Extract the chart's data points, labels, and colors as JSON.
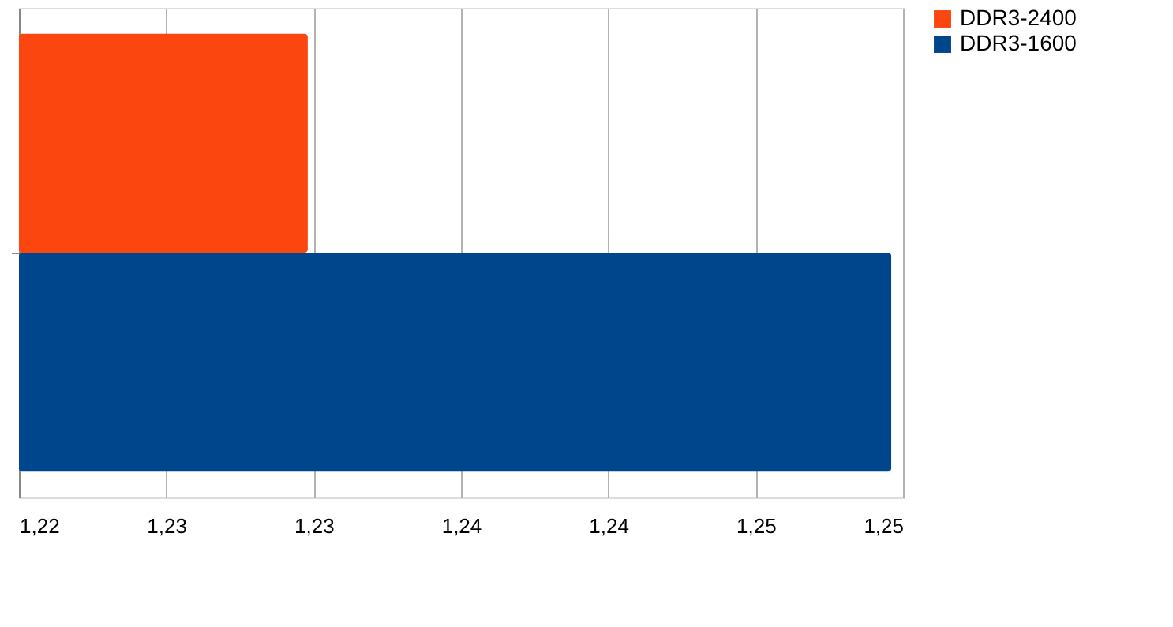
{
  "chart_data": {
    "type": "bar",
    "orientation": "horizontal",
    "categories": [
      null
    ],
    "series": [
      {
        "name": "DDR3-2400",
        "color": "#fc4610",
        "values": [
          1.2298
        ]
      },
      {
        "name": "DDR3-1600",
        "color": "#00468c",
        "values": [
          1.2496
        ]
      }
    ],
    "xlim": [
      1.22,
      1.25
    ],
    "xticks": [
      {
        "value": 1.22,
        "label": "1,22"
      },
      {
        "value": 1.225,
        "label": "1,23"
      },
      {
        "value": 1.23,
        "label": "1,23"
      },
      {
        "value": 1.235,
        "label": "1,24"
      },
      {
        "value": 1.24,
        "label": "1,24"
      },
      {
        "value": 1.245,
        "label": "1,25"
      },
      {
        "value": 1.25,
        "label": "1,25"
      }
    ],
    "grid": "x",
    "legend": "right"
  }
}
